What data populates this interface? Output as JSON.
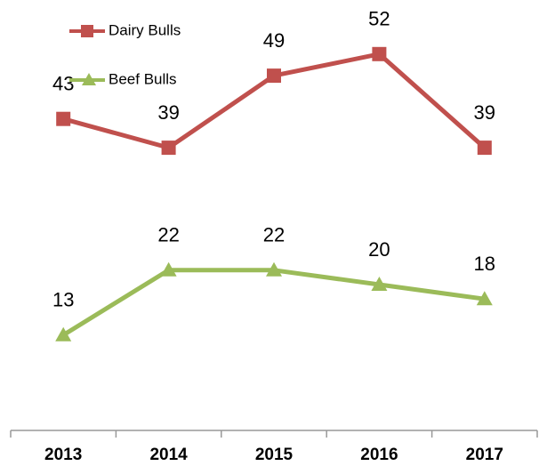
{
  "chart_data": {
    "type": "line",
    "categories": [
      "2013",
      "2014",
      "2015",
      "2016",
      "2017"
    ],
    "series": [
      {
        "name": "Dairy Bulls",
        "color": "#c0504d",
        "marker": "square",
        "values": [
          43,
          39,
          49,
          52,
          39
        ]
      },
      {
        "name": "Beef Bulls",
        "color": "#9bbb59",
        "marker": "triangle",
        "values": [
          13,
          22,
          22,
          20,
          18
        ]
      }
    ],
    "ylim": [
      0,
      60
    ],
    "legend": "top-left",
    "data_labels": true
  }
}
